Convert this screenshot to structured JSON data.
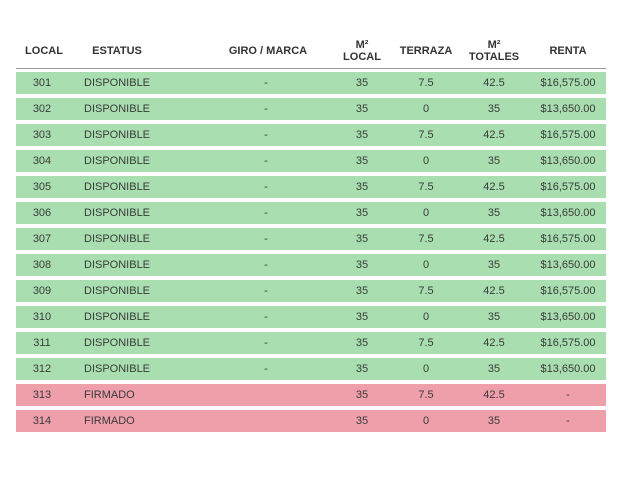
{
  "table": {
    "headers": {
      "local": "LOCAL",
      "status": "ESTATUS",
      "giro": "GIRO / MARCA",
      "m2_local_top": "M²",
      "m2_local_bottom": "LOCAL",
      "terraza": "TERRAZA",
      "m2_totales_top": "M²",
      "m2_totales_bottom": "TOTALES",
      "renta": "RENTA"
    },
    "status_colors": {
      "DISPONIBLE": "#a9dfb0",
      "FIRMADO": "#ee9faa"
    },
    "rows": [
      {
        "local": "301",
        "status": "DISPONIBLE",
        "giro": "-",
        "m2_local": "35",
        "terraza": "7.5",
        "m2_totales": "42.5",
        "renta": "$16,575.00"
      },
      {
        "local": "302",
        "status": "DISPONIBLE",
        "giro": "-",
        "m2_local": "35",
        "terraza": "0",
        "m2_totales": "35",
        "renta": "$13,650.00"
      },
      {
        "local": "303",
        "status": "DISPONIBLE",
        "giro": "-",
        "m2_local": "35",
        "terraza": "7.5",
        "m2_totales": "42.5",
        "renta": "$16,575.00"
      },
      {
        "local": "304",
        "status": "DISPONIBLE",
        "giro": "-",
        "m2_local": "35",
        "terraza": "0",
        "m2_totales": "35",
        "renta": "$13,650.00"
      },
      {
        "local": "305",
        "status": "DISPONIBLE",
        "giro": "-",
        "m2_local": "35",
        "terraza": "7.5",
        "m2_totales": "42.5",
        "renta": "$16,575.00"
      },
      {
        "local": "306",
        "status": "DISPONIBLE",
        "giro": "-",
        "m2_local": "35",
        "terraza": "0",
        "m2_totales": "35",
        "renta": "$13,650.00"
      },
      {
        "local": "307",
        "status": "DISPONIBLE",
        "giro": "-",
        "m2_local": "35",
        "terraza": "7.5",
        "m2_totales": "42.5",
        "renta": "$16,575.00"
      },
      {
        "local": "308",
        "status": "DISPONIBLE",
        "giro": "-",
        "m2_local": "35",
        "terraza": "0",
        "m2_totales": "35",
        "renta": "$13,650.00"
      },
      {
        "local": "309",
        "status": "DISPONIBLE",
        "giro": "-",
        "m2_local": "35",
        "terraza": "7.5",
        "m2_totales": "42.5",
        "renta": "$16,575.00"
      },
      {
        "local": "310",
        "status": "DISPONIBLE",
        "giro": "-",
        "m2_local": "35",
        "terraza": "0",
        "m2_totales": "35",
        "renta": "$13,650.00"
      },
      {
        "local": "311",
        "status": "DISPONIBLE",
        "giro": "-",
        "m2_local": "35",
        "terraza": "7.5",
        "m2_totales": "42.5",
        "renta": "$16,575.00"
      },
      {
        "local": "312",
        "status": "DISPONIBLE",
        "giro": "-",
        "m2_local": "35",
        "terraza": "0",
        "m2_totales": "35",
        "renta": "$13,650.00"
      },
      {
        "local": "313",
        "status": "FIRMADO",
        "giro": "",
        "m2_local": "35",
        "terraza": "7.5",
        "m2_totales": "42.5",
        "renta": "-"
      },
      {
        "local": "314",
        "status": "FIRMADO",
        "giro": "",
        "m2_local": "35",
        "terraza": "0",
        "m2_totales": "35",
        "renta": "-"
      }
    ]
  }
}
